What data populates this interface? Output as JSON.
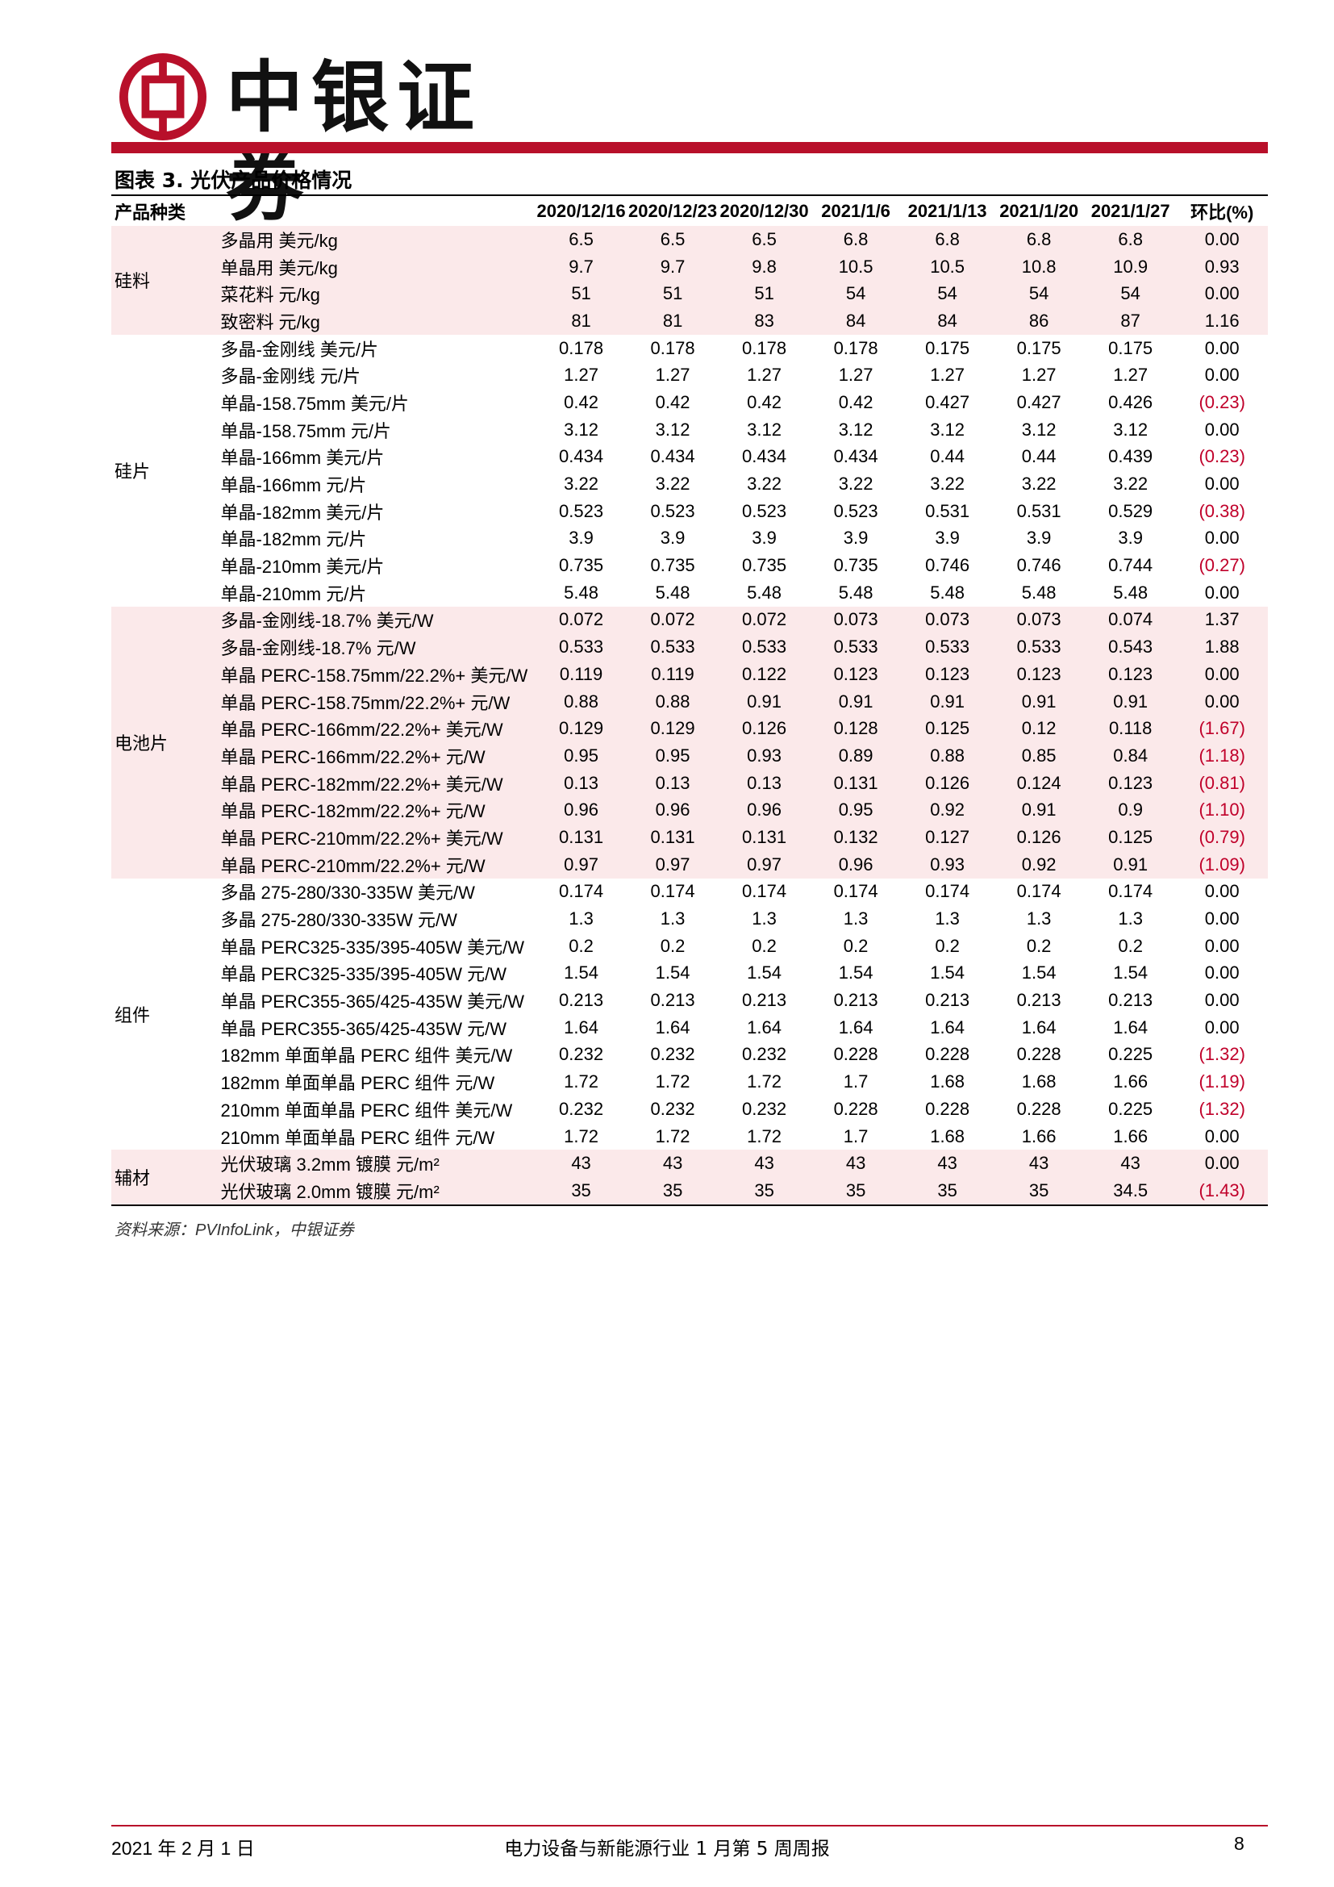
{
  "header": {
    "brand": "中银证券",
    "brand_color": "#b8102a"
  },
  "figure": {
    "title": "图表 3. 光伏产品价格情况",
    "columns": [
      "产品种类",
      "",
      "2020/12/16",
      "2020/12/23",
      "2020/12/30",
      "2021/1/6",
      "2021/1/13",
      "2021/1/20",
      "2021/1/27",
      "环比(%)"
    ],
    "groups": [
      {
        "category": "硅料",
        "shaded": true,
        "rows": [
          {
            "product": "多晶用 美元/kg",
            "values": [
              "6.5",
              "6.5",
              "6.5",
              "6.8",
              "6.8",
              "6.8",
              "6.8"
            ],
            "change": "0.00",
            "negative": false
          },
          {
            "product": "单晶用 美元/kg",
            "values": [
              "9.7",
              "9.7",
              "9.8",
              "10.5",
              "10.5",
              "10.8",
              "10.9"
            ],
            "change": "0.93",
            "negative": false
          },
          {
            "product": "菜花料 元/kg",
            "values": [
              "51",
              "51",
              "51",
              "54",
              "54",
              "54",
              "54"
            ],
            "change": "0.00",
            "negative": false
          },
          {
            "product": "致密料 元/kg",
            "values": [
              "81",
              "81",
              "83",
              "84",
              "84",
              "86",
              "87"
            ],
            "change": "1.16",
            "negative": false
          }
        ]
      },
      {
        "category": "硅片",
        "shaded": false,
        "rows": [
          {
            "product": "多晶-金刚线 美元/片",
            "values": [
              "0.178",
              "0.178",
              "0.178",
              "0.178",
              "0.175",
              "0.175",
              "0.175"
            ],
            "change": "0.00",
            "negative": false
          },
          {
            "product": "多晶-金刚线 元/片",
            "values": [
              "1.27",
              "1.27",
              "1.27",
              "1.27",
              "1.27",
              "1.27",
              "1.27"
            ],
            "change": "0.00",
            "negative": false
          },
          {
            "product": "单晶-158.75mm 美元/片",
            "values": [
              "0.42",
              "0.42",
              "0.42",
              "0.42",
              "0.427",
              "0.427",
              "0.426"
            ],
            "change": "(0.23)",
            "negative": true
          },
          {
            "product": "单晶-158.75mm 元/片",
            "values": [
              "3.12",
              "3.12",
              "3.12",
              "3.12",
              "3.12",
              "3.12",
              "3.12"
            ],
            "change": "0.00",
            "negative": false
          },
          {
            "product": "单晶-166mm 美元/片",
            "values": [
              "0.434",
              "0.434",
              "0.434",
              "0.434",
              "0.44",
              "0.44",
              "0.439"
            ],
            "change": "(0.23)",
            "negative": true
          },
          {
            "product": "单晶-166mm 元/片",
            "values": [
              "3.22",
              "3.22",
              "3.22",
              "3.22",
              "3.22",
              "3.22",
              "3.22"
            ],
            "change": "0.00",
            "negative": false
          },
          {
            "product": "单晶-182mm 美元/片",
            "values": [
              "0.523",
              "0.523",
              "0.523",
              "0.523",
              "0.531",
              "0.531",
              "0.529"
            ],
            "change": "(0.38)",
            "negative": true
          },
          {
            "product": "单晶-182mm 元/片",
            "values": [
              "3.9",
              "3.9",
              "3.9",
              "3.9",
              "3.9",
              "3.9",
              "3.9"
            ],
            "change": "0.00",
            "negative": false
          },
          {
            "product": "单晶-210mm 美元/片",
            "values": [
              "0.735",
              "0.735",
              "0.735",
              "0.735",
              "0.746",
              "0.746",
              "0.744"
            ],
            "change": "(0.27)",
            "negative": true
          },
          {
            "product": "单晶-210mm 元/片",
            "values": [
              "5.48",
              "5.48",
              "5.48",
              "5.48",
              "5.48",
              "5.48",
              "5.48"
            ],
            "change": "0.00",
            "negative": false
          }
        ]
      },
      {
        "category": "电池片",
        "shaded": true,
        "rows": [
          {
            "product": "多晶-金刚线-18.7% 美元/W",
            "values": [
              "0.072",
              "0.072",
              "0.072",
              "0.073",
              "0.073",
              "0.073",
              "0.074"
            ],
            "change": "1.37",
            "negative": false
          },
          {
            "product": "多晶-金刚线-18.7% 元/W",
            "values": [
              "0.533",
              "0.533",
              "0.533",
              "0.533",
              "0.533",
              "0.533",
              "0.543"
            ],
            "change": "1.88",
            "negative": false
          },
          {
            "product": "单晶 PERC-158.75mm/22.2%+ 美元/W",
            "values": [
              "0.119",
              "0.119",
              "0.122",
              "0.123",
              "0.123",
              "0.123",
              "0.123"
            ],
            "change": "0.00",
            "negative": false
          },
          {
            "product": "单晶 PERC-158.75mm/22.2%+ 元/W",
            "values": [
              "0.88",
              "0.88",
              "0.91",
              "0.91",
              "0.91",
              "0.91",
              "0.91"
            ],
            "change": "0.00",
            "negative": false
          },
          {
            "product": "单晶 PERC-166mm/22.2%+ 美元/W",
            "values": [
              "0.129",
              "0.129",
              "0.126",
              "0.128",
              "0.125",
              "0.12",
              "0.118"
            ],
            "change": "(1.67)",
            "negative": true
          },
          {
            "product": "单晶 PERC-166mm/22.2%+ 元/W",
            "values": [
              "0.95",
              "0.95",
              "0.93",
              "0.89",
              "0.88",
              "0.85",
              "0.84"
            ],
            "change": "(1.18)",
            "negative": true
          },
          {
            "product": "单晶 PERC-182mm/22.2%+ 美元/W",
            "values": [
              "0.13",
              "0.13",
              "0.13",
              "0.131",
              "0.126",
              "0.124",
              "0.123"
            ],
            "change": "(0.81)",
            "negative": true
          },
          {
            "product": "单晶 PERC-182mm/22.2%+ 元/W",
            "values": [
              "0.96",
              "0.96",
              "0.96",
              "0.95",
              "0.92",
              "0.91",
              "0.9"
            ],
            "change": "(1.10)",
            "negative": true
          },
          {
            "product": "单晶 PERC-210mm/22.2%+ 美元/W",
            "values": [
              "0.131",
              "0.131",
              "0.131",
              "0.132",
              "0.127",
              "0.126",
              "0.125"
            ],
            "change": "(0.79)",
            "negative": true
          },
          {
            "product": "单晶 PERC-210mm/22.2%+ 元/W",
            "values": [
              "0.97",
              "0.97",
              "0.97",
              "0.96",
              "0.93",
              "0.92",
              "0.91"
            ],
            "change": "(1.09)",
            "negative": true
          }
        ]
      },
      {
        "category": "组件",
        "shaded": false,
        "rows": [
          {
            "product": "多晶 275-280/330-335W 美元/W",
            "values": [
              "0.174",
              "0.174",
              "0.174",
              "0.174",
              "0.174",
              "0.174",
              "0.174"
            ],
            "change": "0.00",
            "negative": false
          },
          {
            "product": "多晶 275-280/330-335W 元/W",
            "values": [
              "1.3",
              "1.3",
              "1.3",
              "1.3",
              "1.3",
              "1.3",
              "1.3"
            ],
            "change": "0.00",
            "negative": false
          },
          {
            "product": "单晶 PERC325-335/395-405W 美元/W",
            "values": [
              "0.2",
              "0.2",
              "0.2",
              "0.2",
              "0.2",
              "0.2",
              "0.2"
            ],
            "change": "0.00",
            "negative": false
          },
          {
            "product": "单晶 PERC325-335/395-405W 元/W",
            "values": [
              "1.54",
              "1.54",
              "1.54",
              "1.54",
              "1.54",
              "1.54",
              "1.54"
            ],
            "change": "0.00",
            "negative": false
          },
          {
            "product": "单晶 PERC355-365/425-435W 美元/W",
            "values": [
              "0.213",
              "0.213",
              "0.213",
              "0.213",
              "0.213",
              "0.213",
              "0.213"
            ],
            "change": "0.00",
            "negative": false
          },
          {
            "product": "单晶 PERC355-365/425-435W 元/W",
            "values": [
              "1.64",
              "1.64",
              "1.64",
              "1.64",
              "1.64",
              "1.64",
              "1.64"
            ],
            "change": "0.00",
            "negative": false
          },
          {
            "product": "182mm 单面单晶 PERC 组件 美元/W",
            "values": [
              "0.232",
              "0.232",
              "0.232",
              "0.228",
              "0.228",
              "0.228",
              "0.225"
            ],
            "change": "(1.32)",
            "negative": true
          },
          {
            "product": "182mm 单面单晶 PERC 组件 元/W",
            "values": [
              "1.72",
              "1.72",
              "1.72",
              "1.7",
              "1.68",
              "1.68",
              "1.66"
            ],
            "change": "(1.19)",
            "negative": true
          },
          {
            "product": "210mm 单面单晶 PERC 组件 美元/W",
            "values": [
              "0.232",
              "0.232",
              "0.232",
              "0.228",
              "0.228",
              "0.228",
              "0.225"
            ],
            "change": "(1.32)",
            "negative": true
          },
          {
            "product": "210mm 单面单晶 PERC 组件 元/W",
            "values": [
              "1.72",
              "1.72",
              "1.72",
              "1.7",
              "1.68",
              "1.66",
              "1.66"
            ],
            "change": "0.00",
            "negative": false
          }
        ]
      },
      {
        "category": "辅材",
        "shaded": true,
        "rows": [
          {
            "product": "光伏玻璃 3.2mm 镀膜 元/m²",
            "values": [
              "43",
              "43",
              "43",
              "43",
              "43",
              "43",
              "43"
            ],
            "change": "0.00",
            "negative": false
          },
          {
            "product": "光伏玻璃 2.0mm 镀膜 元/m²",
            "values": [
              "35",
              "35",
              "35",
              "35",
              "35",
              "35",
              "34.5"
            ],
            "change": "(1.43)",
            "negative": true
          }
        ]
      }
    ],
    "source": "资料来源：PVInfoLink，中银证券"
  },
  "footer": {
    "date": "2021 年 2 月 1 日",
    "report_title": "电力设备与新能源行业 1 月第 5 周周报",
    "page": "8"
  },
  "colors": {
    "negative_change": "#c0002a",
    "shade": "#fbe9ea"
  }
}
